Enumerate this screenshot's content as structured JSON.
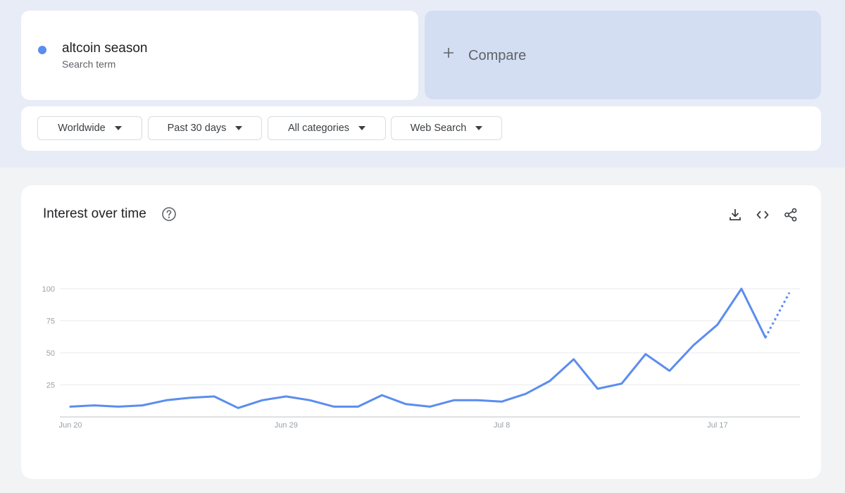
{
  "search_term": {
    "name": "altcoin season",
    "subtitle": "Search term",
    "color": "#5b8def"
  },
  "compare": {
    "label": "Compare",
    "icon": "plus-icon"
  },
  "filters": [
    {
      "label": "Worldwide"
    },
    {
      "label": "Past 30 days"
    },
    {
      "label": "All categories"
    },
    {
      "label": "Web Search"
    }
  ],
  "chart_header": {
    "title": "Interest over time",
    "help_icon": "help-circle-icon",
    "actions": [
      "download-icon",
      "embed-code-icon",
      "share-icon"
    ]
  },
  "chart_data": {
    "type": "line",
    "title": "Interest over time",
    "x_tick_labels": [
      "Jun 20",
      "Jun 29",
      "Jul 8",
      "Jul 17"
    ],
    "x_tick_indices": [
      0,
      9,
      18,
      27
    ],
    "y_ticks": [
      25,
      50,
      75,
      100
    ],
    "ylim": [
      0,
      100
    ],
    "grid": true,
    "series": [
      {
        "color": "#5b8def",
        "values": [
          8,
          9,
          8,
          9,
          13,
          15,
          16,
          7,
          13,
          16,
          13,
          8,
          8,
          17,
          10,
          8,
          13,
          13,
          12,
          18,
          28,
          45,
          22,
          26,
          49,
          36,
          56,
          72,
          100,
          62,
          97
        ],
        "partial_from_index": 29
      }
    ]
  }
}
